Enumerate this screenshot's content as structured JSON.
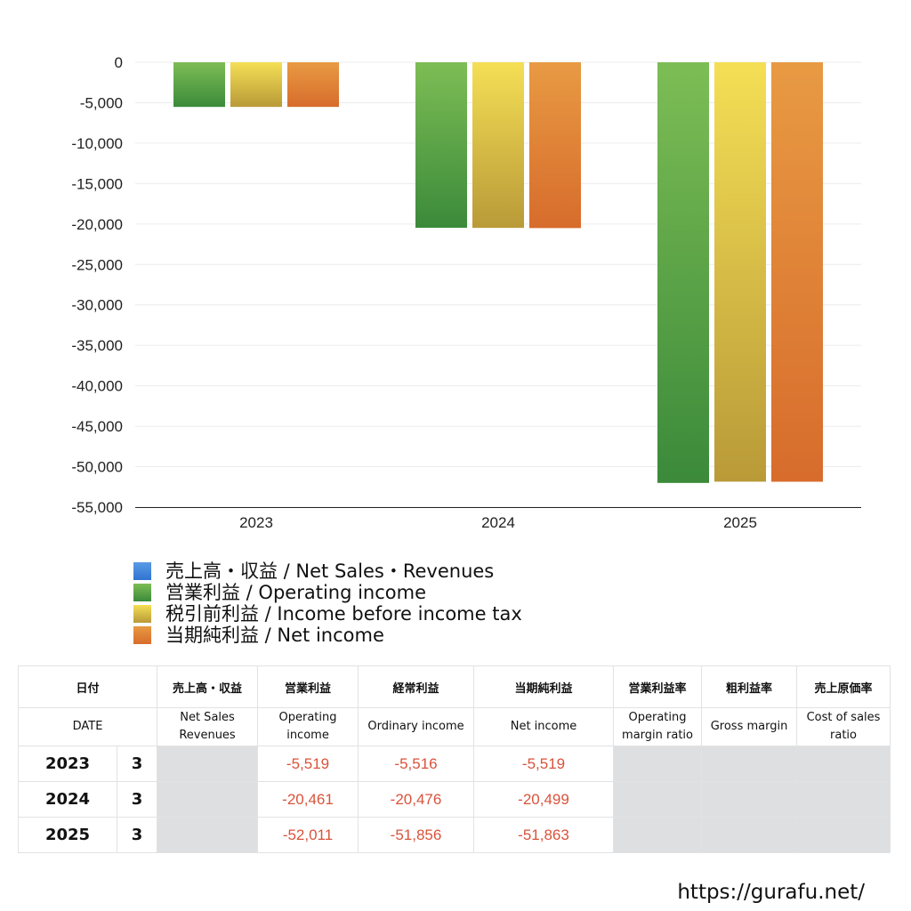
{
  "chart_data": {
    "type": "bar",
    "categories": [
      "2023",
      "2024",
      "2025"
    ],
    "series": [
      {
        "name": "売上高・収益 / Net Sales・Revenues",
        "values": [
          null,
          null,
          null
        ]
      },
      {
        "name": "営業利益 / Operating income",
        "values": [
          -5519,
          -20461,
          -52011
        ]
      },
      {
        "name": "税引前利益 / Income before income tax",
        "values": [
          -5516,
          -20476,
          -51856
        ]
      },
      {
        "name": "当期純利益 / Net income",
        "values": [
          -5519,
          -20499,
          -51863
        ]
      }
    ],
    "ylim": [
      -55000,
      0
    ],
    "yticks": [
      "0",
      "-5,000",
      "-10,000",
      "-15,000",
      "-20,000",
      "-25,000",
      "-30,000",
      "-35,000",
      "-40,000",
      "-45,000",
      "-50,000",
      "-55,000"
    ],
    "ytick_values": [
      0,
      -5000,
      -10000,
      -15000,
      -20000,
      -25000,
      -30000,
      -35000,
      -40000,
      -45000,
      -50000,
      -55000
    ],
    "colors": {
      "net_sales": [
        "#5a9ae6",
        "#2f74d0"
      ],
      "operating": [
        "#7dbd55",
        "#3b8a3a"
      ],
      "pretax": [
        "#f4df55",
        "#b99a38"
      ],
      "net": [
        "#e89a43",
        "#d76c2c"
      ]
    }
  },
  "legend": [
    {
      "label": "売上高・収益 / Net Sales・Revenues",
      "color": "#3f86e0"
    },
    {
      "label": "営業利益 / Operating income",
      "color": "#4c9a40"
    },
    {
      "label": "税引前利益 / Income before income tax",
      "color": "#e6cf4a"
    },
    {
      "label": "当期純利益 / Net income",
      "color": "#e0803a"
    }
  ],
  "table": {
    "headers_jp": [
      "日付",
      "売上高・収益",
      "営業利益",
      "経常利益",
      "当期純利益",
      "営業利益率",
      "粗利益率",
      "売上原価率"
    ],
    "headers_en": {
      "date": "DATE",
      "net_sales_1": "Net Sales",
      "net_sales_2": "Revenues",
      "operating_1": "Operating",
      "operating_2": "income",
      "ordinary": "Ordinary income",
      "net": "Net income",
      "op_margin_1": "Operating",
      "op_margin_2": "margin ratio",
      "gross": "Gross margin",
      "cost_1": "Cost of sales",
      "cost_2": "ratio"
    },
    "rows": [
      {
        "year": "2023",
        "month": "3",
        "operating": "-5,519",
        "ordinary": "-5,516",
        "net": "-5,519"
      },
      {
        "year": "2024",
        "month": "3",
        "operating": "-20,461",
        "ordinary": "-20,476",
        "net": "-20,499"
      },
      {
        "year": "2025",
        "month": "3",
        "operating": "-52,011",
        "ordinary": "-51,856",
        "net": "-51,863"
      }
    ]
  },
  "footer_url": "https://gurafu.net/"
}
